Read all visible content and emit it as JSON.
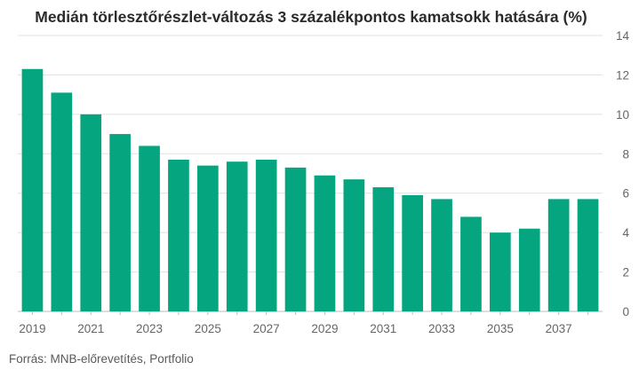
{
  "chart_data": {
    "type": "bar",
    "title": "Medián törlesztőrészlet-változás 3 százalékpontos kamatsokk hatására (%)",
    "source": "Forrás: MNB-előrevetítés, Portfolio",
    "categories": [
      "2019",
      "2020",
      "2021",
      "2022",
      "2023",
      "2024",
      "2025",
      "2026",
      "2027",
      "2028",
      "2029",
      "2030",
      "2031",
      "2032",
      "2033",
      "2034",
      "2035",
      "2036",
      "2037",
      "2038"
    ],
    "x_tick_labels": [
      "2019",
      "2021",
      "2023",
      "2025",
      "2027",
      "2029",
      "2031",
      "2033",
      "2035",
      "2037"
    ],
    "values": [
      12.3,
      11.1,
      10.0,
      9.0,
      8.4,
      7.7,
      7.4,
      7.6,
      7.7,
      7.3,
      6.9,
      6.7,
      6.3,
      5.9,
      5.7,
      4.8,
      4.0,
      4.2,
      5.7,
      5.7
    ],
    "ylim": [
      0,
      14
    ],
    "yticks": [
      0,
      2,
      4,
      6,
      8,
      10,
      12,
      14
    ],
    "y_axis_side": "right",
    "bar_color": "#05a67f",
    "grid": true,
    "grid_color": "#e1e1e1",
    "xlabel": "",
    "ylabel": ""
  }
}
